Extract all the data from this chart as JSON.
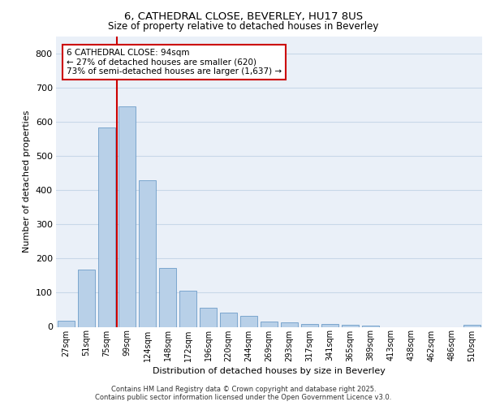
{
  "title_line1": "6, CATHEDRAL CLOSE, BEVERLEY, HU17 8US",
  "title_line2": "Size of property relative to detached houses in Beverley",
  "xlabel": "Distribution of detached houses by size in Beverley",
  "ylabel": "Number of detached properties",
  "categories": [
    "27sqm",
    "51sqm",
    "75sqm",
    "99sqm",
    "124sqm",
    "148sqm",
    "172sqm",
    "196sqm",
    "220sqm",
    "244sqm",
    "269sqm",
    "293sqm",
    "317sqm",
    "341sqm",
    "365sqm",
    "389sqm",
    "413sqm",
    "438sqm",
    "462sqm",
    "486sqm",
    "510sqm"
  ],
  "values": [
    18,
    168,
    583,
    645,
    430,
    173,
    105,
    57,
    42,
    32,
    15,
    12,
    9,
    9,
    5,
    4,
    0,
    0,
    0,
    0,
    6
  ],
  "bar_color": "#b8d0e8",
  "bar_edge_color": "#5a8fc0",
  "grid_color": "#c8d8e8",
  "background_color": "#eaf0f8",
  "vline_color": "#cc0000",
  "vline_x": 2.5,
  "annotation_text": "6 CATHEDRAL CLOSE: 94sqm\n← 27% of detached houses are smaller (620)\n73% of semi-detached houses are larger (1,637) →",
  "annotation_box_color": "#ffffff",
  "annotation_box_edge": "#cc0000",
  "ylim": [
    0,
    850
  ],
  "yticks": [
    0,
    100,
    200,
    300,
    400,
    500,
    600,
    700,
    800
  ],
  "footer_line1": "Contains HM Land Registry data © Crown copyright and database right 2025.",
  "footer_line2": "Contains public sector information licensed under the Open Government Licence v3.0."
}
